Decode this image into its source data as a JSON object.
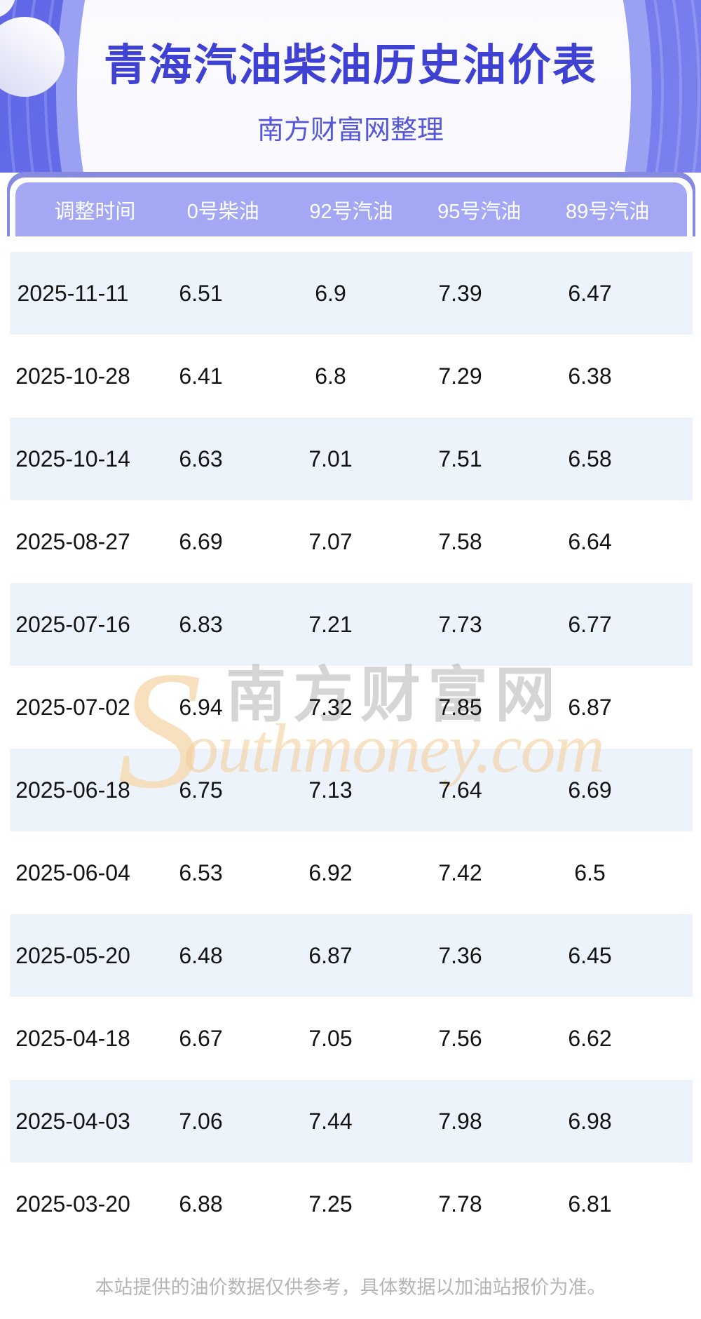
{
  "hero": {
    "title": "青海汽油柴油历史油价表",
    "subtitle": "南方财富网整理"
  },
  "table": {
    "columns": [
      "调整时间",
      "0号柴油",
      "92号汽油",
      "95号汽油",
      "89号汽油"
    ],
    "rows": [
      [
        "2025-11-11",
        "6.51",
        "6.9",
        "7.39",
        "6.47"
      ],
      [
        "2025-10-28",
        "6.41",
        "6.8",
        "7.29",
        "6.38"
      ],
      [
        "2025-10-14",
        "6.63",
        "7.01",
        "7.51",
        "6.58"
      ],
      [
        "2025-08-27",
        "6.69",
        "7.07",
        "7.58",
        "6.64"
      ],
      [
        "2025-07-16",
        "6.83",
        "7.21",
        "7.73",
        "6.77"
      ],
      [
        "2025-07-02",
        "6.94",
        "7.32",
        "7.85",
        "6.87"
      ],
      [
        "2025-06-18",
        "6.75",
        "7.13",
        "7.64",
        "6.69"
      ],
      [
        "2025-06-04",
        "6.53",
        "6.92",
        "7.42",
        "6.5"
      ],
      [
        "2025-05-20",
        "6.48",
        "6.87",
        "7.36",
        "6.45"
      ],
      [
        "2025-04-18",
        "6.67",
        "7.05",
        "7.56",
        "6.62"
      ],
      [
        "2025-04-03",
        "7.06",
        "7.44",
        "7.98",
        "6.98"
      ],
      [
        "2025-03-20",
        "6.88",
        "7.25",
        "7.78",
        "6.81"
      ]
    ]
  },
  "watermark": {
    "initial": "S",
    "chinese": "南方财富网",
    "english": "outhmoney.com"
  },
  "footer": {
    "disclaimer": "本站提供的油价数据仅供参考，具体数据以加油站报价为准。"
  },
  "colors": {
    "hero_purple": "#6b71e9",
    "halo_purple": "#9aa0f2",
    "card_lip_purple": "#868ae0",
    "header_row_purple": "#a3a7f4",
    "alt_row_blue": "#edf3fb",
    "title_indigo": "#3f41d2",
    "subtitle_indigo": "#5457da",
    "body_text": "#131313",
    "footer_gray": "#b5b5b5",
    "watermark_orange": "#f3cf9e",
    "watermark_gray": "#919191"
  }
}
